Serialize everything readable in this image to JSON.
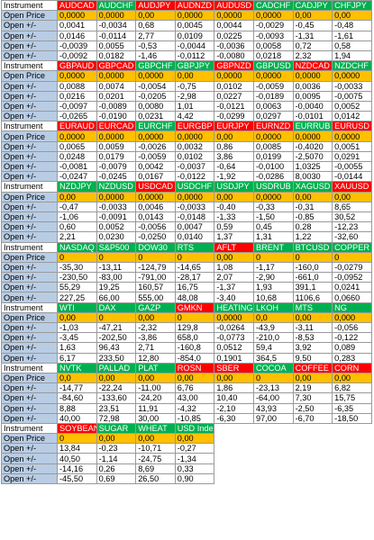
{
  "labels": {
    "instrument": "Instrument",
    "open_price": "Open Price",
    "change": "Open +/-"
  },
  "colors": {
    "label_bg": "#b8cce4",
    "open_price_bg": "#ffc000",
    "down_header_bg": "#ff0000",
    "up_header_bg": "#00b050"
  },
  "blocks": [
    {
      "instruments": [
        {
          "name": "AUDCAD",
          "trend": "down"
        },
        {
          "name": "AUDCHF",
          "trend": "up"
        },
        {
          "name": "AUDJPY",
          "trend": "down"
        },
        {
          "name": "AUDNZD",
          "trend": "down"
        },
        {
          "name": "AUDUSD",
          "trend": "down"
        },
        {
          "name": "CADCHF",
          "trend": "up"
        },
        {
          "name": "CADJPY",
          "trend": "up"
        },
        {
          "name": "CHFJPY",
          "trend": "up"
        }
      ],
      "open_price": [
        "0,0000",
        "0,0000",
        "0,00",
        "0,0000",
        "0,0000",
        "0,0000",
        "0,00",
        "0,00"
      ],
      "changes": [
        [
          "0,0041",
          "-0,0034",
          "0,68",
          "0,0045",
          "0,0044",
          "-0,0029",
          "-0,45",
          "-0,48"
        ],
        [
          "0,0146",
          "-0,0114",
          "2,77",
          "0,0109",
          "0,0225",
          "-0,0093",
          "-1,31",
          "-1,61"
        ],
        [
          "-0,0039",
          "0,0055",
          "-0,53",
          "-0,0044",
          "-0,0036",
          "0,0058",
          "0,72",
          "0,58"
        ],
        [
          "-0,0092",
          "0,0182",
          "-1,46",
          "-0,0112",
          "-0,0080",
          "0,0218",
          "2,32",
          "1,94"
        ]
      ]
    },
    {
      "instruments": [
        {
          "name": "GBPAUD",
          "trend": "down"
        },
        {
          "name": "GBPCAD",
          "trend": "down"
        },
        {
          "name": "GBPCHF",
          "trend": "up"
        },
        {
          "name": "GBPJPY",
          "trend": "up"
        },
        {
          "name": "GBPNZD",
          "trend": "down"
        },
        {
          "name": "GBPUSD",
          "trend": "up"
        },
        {
          "name": "NZDCAD",
          "trend": "down"
        },
        {
          "name": "NZDCHF",
          "trend": "up"
        }
      ],
      "open_price": [
        "0,0000",
        "0,0000",
        "0,0000",
        "0,00",
        "0,0000",
        "0,0000",
        "0,0000",
        "0,0000"
      ],
      "changes": [
        [
          "0,0088",
          "0,0074",
          "-0,0054",
          "-0,75",
          "0,0102",
          "-0,0059",
          "0,0036",
          "-0,0033"
        ],
        [
          "0,0216",
          "0,0201",
          "-0,0205",
          "-2,98",
          "0,0227",
          "-0,0189",
          "0,0095",
          "-0,0075"
        ],
        [
          "-0,0097",
          "-0,0089",
          "0,0080",
          "1,01",
          "-0,0121",
          "0,0063",
          "-0,0040",
          "0,0052"
        ],
        [
          "-0,0265",
          "-0,0190",
          "0,0231",
          "4,42",
          "-0,0299",
          "0,0297",
          "-0,0101",
          "0,0142"
        ]
      ]
    },
    {
      "instruments": [
        {
          "name": "EURAUD",
          "trend": "down"
        },
        {
          "name": "EURCAD",
          "trend": "down"
        },
        {
          "name": "EURCHF",
          "trend": "up"
        },
        {
          "name": "EURGBP",
          "trend": "down"
        },
        {
          "name": "EURJPY",
          "trend": "down"
        },
        {
          "name": "EURNZD",
          "trend": "down"
        },
        {
          "name": "EURRUB",
          "trend": "up"
        },
        {
          "name": "EURUSD",
          "trend": "down"
        }
      ],
      "open_price": [
        "0,0000",
        "0,0000",
        "0,0000",
        "0,0000",
        "0,00",
        "0,0000",
        "0,0000",
        "0,0000"
      ],
      "changes": [
        [
          "0,0065",
          "0,0059",
          "-0,0026",
          "0,0032",
          "0,86",
          "0,0085",
          "-0,4020",
          "0,0051"
        ],
        [
          "0,0248",
          "0,0179",
          "-0,0059",
          "0,0102",
          "3,86",
          "0,0199",
          "-2,5070",
          "0,0291"
        ],
        [
          "-0,0081",
          "-0,0079",
          "0,0042",
          "-0,0037",
          "-0,64",
          "-0,0100",
          "1,0325",
          "-0,0055"
        ],
        [
          "-0,0247",
          "-0,0245",
          "0,0167",
          "-0,0122",
          "-1,92",
          "-0,0286",
          "8,0030",
          "-0,0144"
        ]
      ]
    },
    {
      "instruments": [
        {
          "name": "NZDJPY",
          "trend": "up"
        },
        {
          "name": "NZDUSD",
          "trend": "up"
        },
        {
          "name": "USDCAD",
          "trend": "down"
        },
        {
          "name": "USDCHF",
          "trend": "up"
        },
        {
          "name": "USDJPY",
          "trend": "up"
        },
        {
          "name": "USDRUB",
          "trend": "up"
        },
        {
          "name": "XAGUSD",
          "trend": "up"
        },
        {
          "name": "XAUUSD",
          "trend": "down"
        }
      ],
      "open_price": [
        "0,00",
        "0,0000",
        "0,0000",
        "0,0000",
        "0,00",
        "0,0000",
        "0,00",
        "0,00"
      ],
      "changes": [
        [
          "-0,47",
          "-0,0033",
          "0,0046",
          "-0,0033",
          "-0,40",
          "-0,33",
          "-0,31",
          "8,65"
        ],
        [
          "-1,06",
          "-0,0091",
          "0,0143",
          "-0,0148",
          "-1,33",
          "-1,50",
          "-0,85",
          "30,52"
        ],
        [
          "0,60",
          "0,0052",
          "-0,0056",
          "0,0047",
          "0,59",
          "0,45",
          "0,28",
          "-12,23"
        ],
        [
          "2,21",
          "0,0230",
          "-0,0250",
          "0,0140",
          "1,37",
          "1,31",
          "1,22",
          "-32,60"
        ]
      ]
    },
    {
      "instruments": [
        {
          "name": "NASDAQ",
          "trend": "up"
        },
        {
          "name": "S&P500",
          "trend": "up"
        },
        {
          "name": "DOW30",
          "trend": "up"
        },
        {
          "name": "RTS",
          "trend": "up"
        },
        {
          "name": "AFLT",
          "trend": "down"
        },
        {
          "name": "BRENT",
          "trend": "up"
        },
        {
          "name": "BTCUSD",
          "trend": "up"
        },
        {
          "name": "COPPER",
          "trend": "up"
        }
      ],
      "open_price": [
        "0",
        "0",
        "0",
        "0",
        "0,00",
        "0",
        "0",
        "0"
      ],
      "changes": [
        [
          "-35,30",
          "-13,11",
          "-124,79",
          "-14,65",
          "1,08",
          "-1,17",
          "-160,0",
          "-0,0279"
        ],
        [
          "-230,50",
          "-83,00",
          "-791,00",
          "-28,17",
          "2,07",
          "-2,90",
          "-661,0",
          "-0,0952"
        ],
        [
          "55,29",
          "19,25",
          "160,57",
          "16,75",
          "-1,37",
          "1,93",
          "391,1",
          "0,0241"
        ],
        [
          "227,25",
          "66,00",
          "555,00",
          "48,08",
          "-3,40",
          "10,68",
          "1106,6",
          "0,0660"
        ]
      ]
    },
    {
      "instruments": [
        {
          "name": "WTI",
          "trend": "up"
        },
        {
          "name": "DAX",
          "trend": "up"
        },
        {
          "name": "GAZP",
          "trend": "up"
        },
        {
          "name": "GMKN",
          "trend": "down"
        },
        {
          "name": "HEATING",
          "trend": "up"
        },
        {
          "name": "LKOH",
          "trend": "up"
        },
        {
          "name": "MTS",
          "trend": "up"
        },
        {
          "name": "NG",
          "trend": "up"
        }
      ],
      "open_price": [
        "0,00",
        "0",
        "0,00",
        "0",
        "0,0000",
        "0,0",
        "0,00",
        "0,000"
      ],
      "changes": [
        [
          "-1,03",
          "-47,21",
          "-2,32",
          "129,8",
          "-0,0264",
          "-43,9",
          "-3,11",
          "-0,056"
        ],
        [
          "-3,45",
          "-202,50",
          "-3,86",
          "658,0",
          "-0,0773",
          "-210,0",
          "-8,53",
          "-0,122"
        ],
        [
          "1,63",
          "96,43",
          "2,71",
          "-160,8",
          "0,0512",
          "59,4",
          "3,92",
          "0,089"
        ],
        [
          "6,17",
          "233,50",
          "12,80",
          "-854,0",
          "0,1901",
          "364,5",
          "9,50",
          "0,283"
        ]
      ]
    },
    {
      "instruments": [
        {
          "name": "NVTK",
          "trend": "up"
        },
        {
          "name": "PALLAD",
          "trend": "up"
        },
        {
          "name": "PLAT",
          "trend": "up"
        },
        {
          "name": "ROSN",
          "trend": "down"
        },
        {
          "name": "SBER",
          "trend": "down"
        },
        {
          "name": "COCOA",
          "trend": "up"
        },
        {
          "name": "COFFEE",
          "trend": "down"
        },
        {
          "name": "CORN",
          "trend": "down"
        }
      ],
      "open_price": [
        "0,0",
        "0,00",
        "0,00",
        "0,00",
        "0,00",
        "0",
        "0,00",
        "0,00"
      ],
      "changes": [
        [
          "-14,77",
          "-22,24",
          "-11,00",
          "6,76",
          "1,86",
          "-23,13",
          "2,19",
          "6,82"
        ],
        [
          "-84,60",
          "-133,60",
          "-24,20",
          "43,00",
          "10,40",
          "-64,00",
          "7,30",
          "15,75"
        ],
        [
          "8,88",
          "23,51",
          "11,91",
          "-4,32",
          "-2,10",
          "43,93",
          "-2,50",
          "-6,35"
        ],
        [
          "40,00",
          "72,98",
          "30,00",
          "-10,85",
          "-6,30",
          "97,00",
          "-6,70",
          "-18,50"
        ]
      ]
    },
    {
      "instruments": [
        {
          "name": "SOYBEAN",
          "trend": "down"
        },
        {
          "name": "SUGAR",
          "trend": "up"
        },
        {
          "name": "WHEAT",
          "trend": "up"
        },
        {
          "name": "USD Index",
          "trend": "up"
        }
      ],
      "open_price": [
        "0",
        "0,00",
        "0,00",
        "0,00"
      ],
      "changes": [
        [
          "13,84",
          "-0,23",
          "-10,71",
          "-0,27"
        ],
        [
          "40,50",
          "-1,14",
          "-24,75",
          "-1,34"
        ],
        [
          "-14,16",
          "0,26",
          "8,69",
          "0,33"
        ],
        [
          "-45,50",
          "0,69",
          "26,50",
          "0,90"
        ]
      ]
    }
  ]
}
